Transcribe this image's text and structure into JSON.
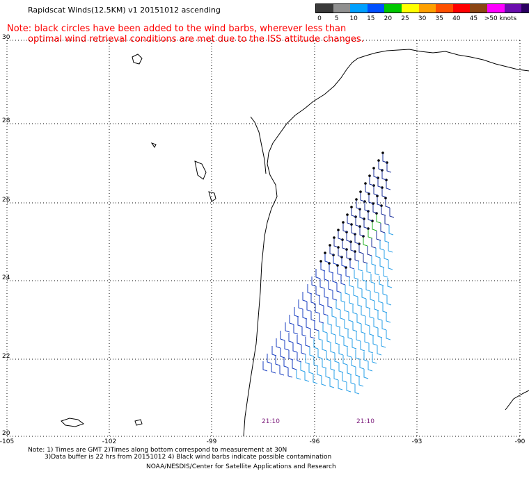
{
  "header": {
    "title": "Rapidscat Winds(12.5KM) v1 20151012 ascending",
    "note_line1": "Note: black circles have been added to the wind barbs, wherever less than",
    "note_line2": "optimal wind retrieval conditions are met due to the ISS attitude changes."
  },
  "legend": {
    "labels": [
      "0",
      "5",
      "10",
      "15",
      "20",
      "25",
      "30",
      "35",
      "40",
      "45",
      ">50 knots"
    ],
    "colors": [
      "#3a3a3a",
      "#909090",
      "#00a0ff",
      "#0050ff",
      "#00c800",
      "#ffff00",
      "#ffa000",
      "#ff5000",
      "#ff0000",
      "#8b4513",
      "#ff00ff",
      "#6a0dad",
      "#2a0060"
    ]
  },
  "map": {
    "lat_labels": [
      "30",
      "28",
      "26",
      "24",
      "22",
      "20"
    ],
    "lon_labels": [
      "-105",
      "-102",
      "-99",
      "-96",
      "-93",
      "-90"
    ],
    "time_labels": [
      "21:10",
      "21:10"
    ]
  },
  "footer": {
    "line1": "Note: 1) Times are GMT 2)Times along bottom correspond to measurement at 30N",
    "line2": "3)Data buffer is 22 hrs from 20151012 4) Black wind barbs indicate possible contamination",
    "line3": "NOAA/NESDIS/Center for Satellite Applications and Research"
  }
}
